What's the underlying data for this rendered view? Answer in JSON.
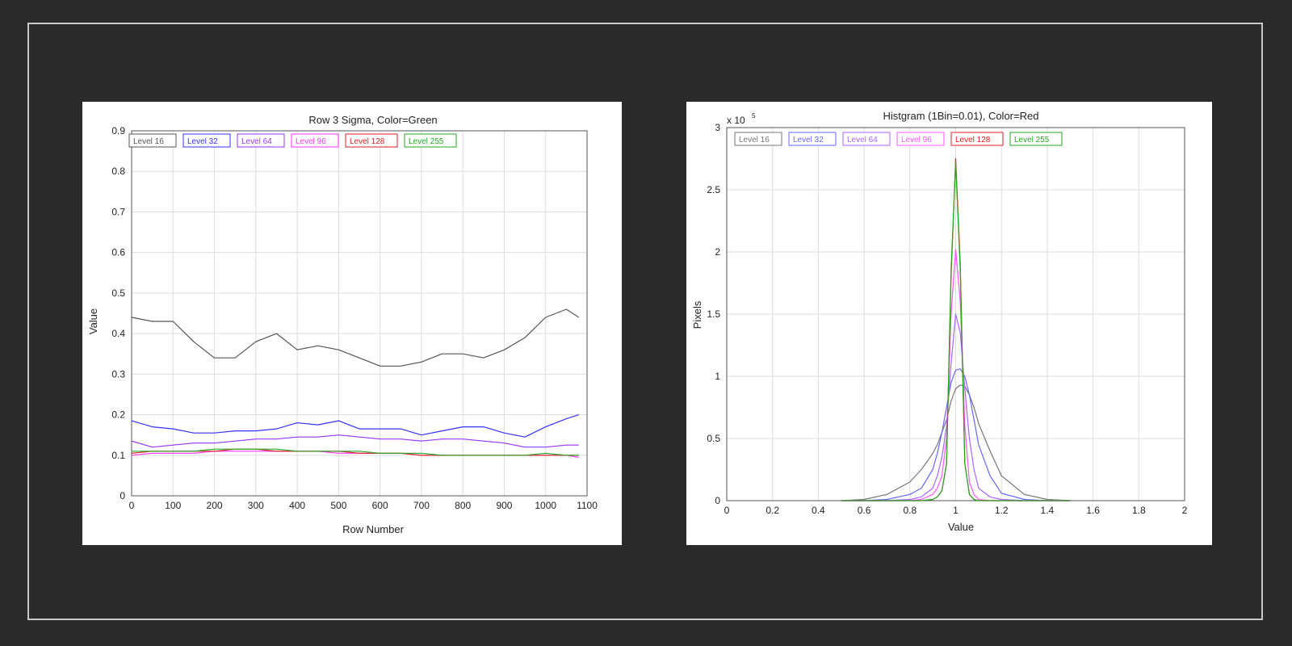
{
  "chart_data": [
    {
      "type": "line",
      "title": "Row 3 Sigma, Color=Green",
      "xlabel": "Row Number",
      "ylabel": "Value",
      "xlim": [
        0,
        1100
      ],
      "ylim": [
        0,
        0.9
      ],
      "xticks": [
        0,
        100,
        200,
        300,
        400,
        500,
        600,
        700,
        800,
        900,
        1000,
        1100
      ],
      "yticks": [
        0,
        0.1,
        0.2,
        0.3,
        0.4,
        0.5,
        0.6,
        0.7,
        0.8,
        0.9
      ],
      "grid": true,
      "legend": "top-left, horizontal",
      "x": [
        0,
        50,
        100,
        150,
        200,
        250,
        300,
        350,
        400,
        450,
        500,
        550,
        600,
        650,
        700,
        750,
        800,
        850,
        900,
        950,
        1000,
        1050,
        1080
      ],
      "series": [
        {
          "name": "Level 16",
          "color": "#555555",
          "values": [
            0.44,
            0.43,
            0.43,
            0.38,
            0.34,
            0.34,
            0.38,
            0.4,
            0.36,
            0.37,
            0.36,
            0.34,
            0.32,
            0.32,
            0.33,
            0.35,
            0.35,
            0.34,
            0.36,
            0.39,
            0.44,
            0.46,
            0.44
          ]
        },
        {
          "name": "Level 32",
          "color": "#3333ff",
          "values": [
            0.185,
            0.17,
            0.165,
            0.155,
            0.155,
            0.16,
            0.16,
            0.165,
            0.18,
            0.175,
            0.185,
            0.165,
            0.165,
            0.165,
            0.15,
            0.16,
            0.17,
            0.17,
            0.155,
            0.145,
            0.17,
            0.19,
            0.2
          ]
        },
        {
          "name": "Level 64",
          "color": "#9933ff",
          "values": [
            0.135,
            0.12,
            0.125,
            0.13,
            0.13,
            0.135,
            0.14,
            0.14,
            0.145,
            0.145,
            0.15,
            0.145,
            0.14,
            0.14,
            0.135,
            0.14,
            0.14,
            0.135,
            0.13,
            0.12,
            0.12,
            0.125,
            0.125
          ]
        },
        {
          "name": "Level 96",
          "color": "#ff33ff",
          "values": [
            0.1,
            0.105,
            0.105,
            0.105,
            0.11,
            0.11,
            0.11,
            0.11,
            0.11,
            0.11,
            0.105,
            0.105,
            0.105,
            0.105,
            0.1,
            0.1,
            0.1,
            0.1,
            0.1,
            0.1,
            0.1,
            0.1,
            0.095
          ]
        },
        {
          "name": "Level 128",
          "color": "#dd2222",
          "values": [
            0.105,
            0.11,
            0.11,
            0.11,
            0.11,
            0.115,
            0.115,
            0.11,
            0.11,
            0.11,
            0.11,
            0.105,
            0.105,
            0.105,
            0.1,
            0.1,
            0.1,
            0.1,
            0.1,
            0.1,
            0.1,
            0.1,
            0.1
          ]
        },
        {
          "name": "Level 255",
          "color": "#22aa22",
          "values": [
            0.11,
            0.11,
            0.11,
            0.11,
            0.115,
            0.115,
            0.115,
            0.115,
            0.11,
            0.11,
            0.11,
            0.11,
            0.105,
            0.105,
            0.105,
            0.1,
            0.1,
            0.1,
            0.1,
            0.1,
            0.105,
            0.1,
            0.1
          ]
        }
      ]
    },
    {
      "type": "line",
      "title": "Histgram (1Bin=0.01), Color=Red",
      "xlabel": "Value",
      "ylabel": "Pixels",
      "scale_label": "x 10",
      "scale_exponent": "5",
      "xlim": [
        0,
        2
      ],
      "ylim": [
        0,
        3
      ],
      "xticks": [
        0,
        0.2,
        0.4,
        0.6,
        0.8,
        1,
        1.2,
        1.4,
        1.6,
        1.8,
        2
      ],
      "yticks": [
        0,
        0.5,
        1,
        1.5,
        2,
        2.5,
        3
      ],
      "grid": true,
      "legend": "top-left, horizontal",
      "x": [
        0.5,
        0.6,
        0.7,
        0.8,
        0.85,
        0.9,
        0.92,
        0.94,
        0.96,
        0.98,
        1.0,
        1.02,
        1.04,
        1.06,
        1.08,
        1.1,
        1.15,
        1.2,
        1.3,
        1.4,
        1.5
      ],
      "series": [
        {
          "name": "Level 16",
          "color": "#777777",
          "values": [
            0,
            0.01,
            0.05,
            0.15,
            0.25,
            0.38,
            0.45,
            0.55,
            0.65,
            0.8,
            0.9,
            0.93,
            0.92,
            0.85,
            0.75,
            0.62,
            0.4,
            0.2,
            0.05,
            0.01,
            0
          ]
        },
        {
          "name": "Level 32",
          "color": "#6666ff",
          "values": [
            0,
            0,
            0.01,
            0.05,
            0.1,
            0.25,
            0.38,
            0.55,
            0.75,
            0.95,
            1.05,
            1.06,
            1.0,
            0.85,
            0.65,
            0.45,
            0.2,
            0.06,
            0.01,
            0,
            0
          ]
        },
        {
          "name": "Level 64",
          "color": "#aa66ff",
          "values": [
            0,
            0,
            0,
            0.01,
            0.03,
            0.1,
            0.2,
            0.35,
            0.6,
            1.1,
            1.5,
            1.35,
            0.9,
            0.5,
            0.25,
            0.1,
            0.03,
            0.01,
            0,
            0,
            0
          ]
        },
        {
          "name": "Level 96",
          "color": "#ff55ff",
          "values": [
            0,
            0,
            0,
            0,
            0.01,
            0.05,
            0.1,
            0.2,
            0.5,
            1.5,
            2.02,
            1.6,
            0.6,
            0.15,
            0.05,
            0.01,
            0,
            0,
            0,
            0,
            0
          ]
        },
        {
          "name": "Level 128",
          "color": "#dd2222",
          "values": [
            0,
            0,
            0,
            0,
            0,
            0.01,
            0.03,
            0.08,
            0.3,
            1.8,
            2.75,
            1.9,
            0.3,
            0.05,
            0.01,
            0,
            0,
            0,
            0,
            0,
            0
          ]
        },
        {
          "name": "Level 255",
          "color": "#22aa22",
          "values": [
            0,
            0,
            0,
            0,
            0,
            0.01,
            0.03,
            0.08,
            0.3,
            1.85,
            2.72,
            1.85,
            0.3,
            0.05,
            0.01,
            0,
            0,
            0,
            0,
            0,
            0
          ]
        }
      ]
    }
  ]
}
